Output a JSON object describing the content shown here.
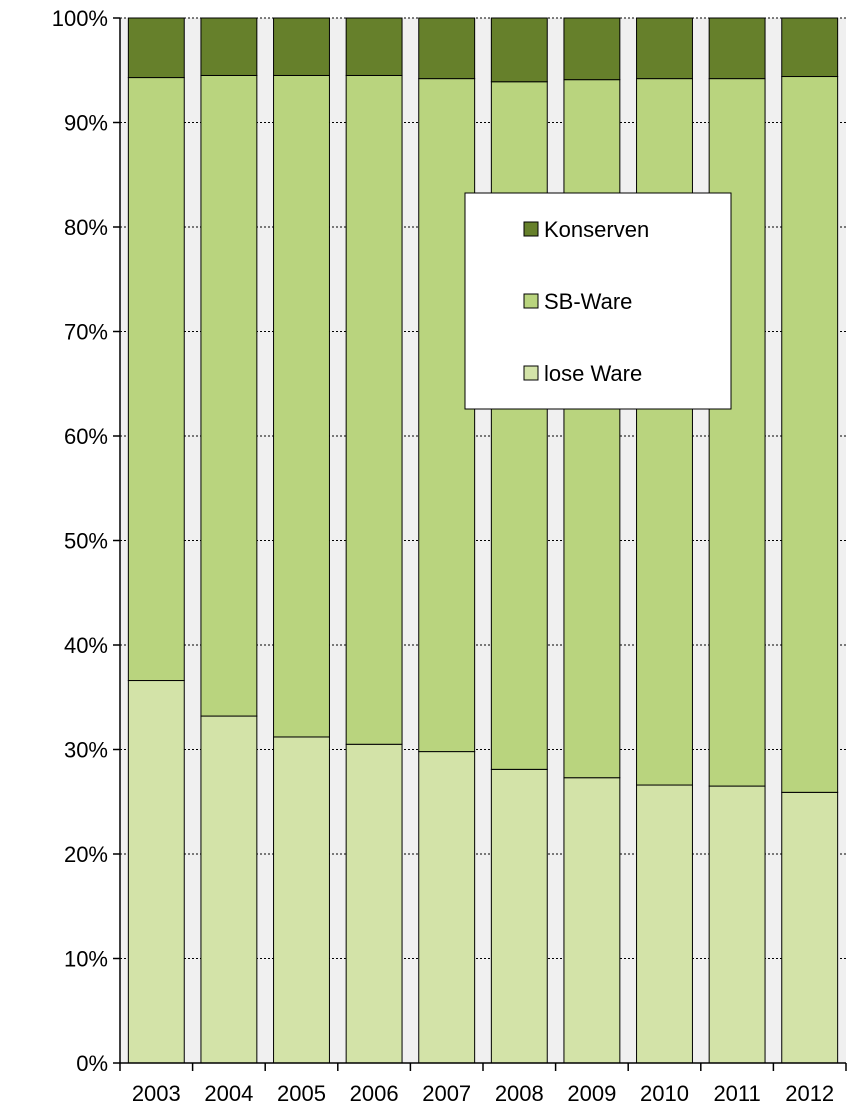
{
  "chart_data": {
    "type": "bar",
    "stacked": true,
    "percent": true,
    "categories": [
      "2003",
      "2004",
      "2005",
      "2006",
      "2007",
      "2008",
      "2009",
      "2010",
      "2011",
      "2012"
    ],
    "series": [
      {
        "name": "lose Ware",
        "color": "#d3e3a8",
        "values": [
          36.6,
          33.2,
          31.2,
          30.5,
          29.8,
          28.1,
          27.3,
          26.6,
          26.5,
          25.9
        ]
      },
      {
        "name": "SB-Ware",
        "color": "#b9d47e",
        "values": [
          57.7,
          61.3,
          63.3,
          64.0,
          64.4,
          65.8,
          66.8,
          67.6,
          67.7,
          68.5
        ]
      },
      {
        "name": "Konserven",
        "color": "#66802b",
        "values": [
          5.7,
          5.5,
          5.5,
          5.5,
          5.8,
          6.1,
          5.9,
          5.8,
          5.8,
          5.6
        ]
      }
    ],
    "ylim": [
      0,
      100
    ],
    "yticks": [
      "0%",
      "10%",
      "20%",
      "30%",
      "40%",
      "50%",
      "60%",
      "70%",
      "80%",
      "90%",
      "100%"
    ],
    "legend_order": [
      "Konserven",
      "SB-Ware",
      "lose Ware"
    ],
    "legend_placement": "top-right (inside plot)",
    "grid": true,
    "plot_background": "#f0f0f0"
  }
}
